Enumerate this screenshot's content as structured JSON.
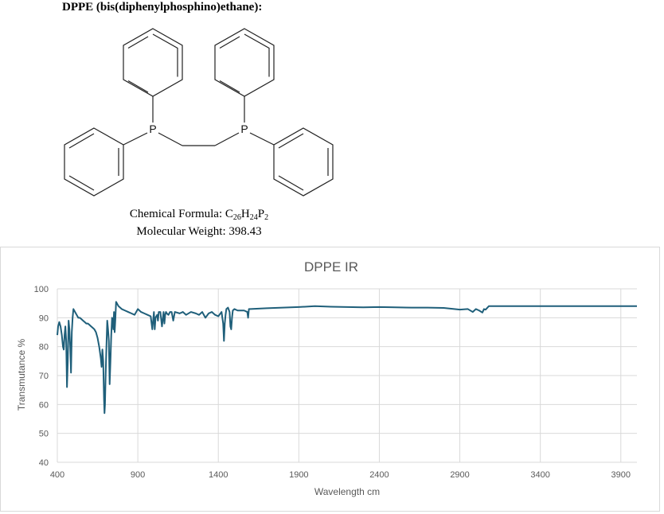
{
  "header": {
    "title": "DPPE (bis(diphenylphosphino)ethane):"
  },
  "molecule": {
    "atom_labels": [
      "P",
      "P"
    ],
    "formula_prefix": "Chemical Formula: ",
    "formula_parts": [
      {
        "text": "C",
        "sub": "26"
      },
      {
        "text": "H",
        "sub": "24"
      },
      {
        "text": "P",
        "sub": "2"
      }
    ],
    "mw_label": "Molecular Weight: ",
    "mw_value": "398.43"
  },
  "chart_data": {
    "type": "line",
    "title": "DPPE IR",
    "xlabel": "Wavelength cm",
    "ylabel": "Transmutance %",
    "xlim": [
      400,
      4000
    ],
    "ylim": [
      40,
      100
    ],
    "xticks": [
      400,
      900,
      1400,
      1900,
      2400,
      2900,
      3400,
      3900
    ],
    "yticks": [
      40,
      50,
      60,
      70,
      80,
      90,
      100
    ],
    "grid": true,
    "legend": "none",
    "line_color": "#1f5f7a",
    "series": [
      {
        "x": [
          400,
          405,
          412,
          420,
          428,
          435,
          440,
          445,
          450,
          455,
          460,
          465,
          470,
          475,
          480,
          485,
          490,
          495,
          500,
          505,
          510,
          515,
          520,
          525,
          530,
          540,
          550,
          560,
          570,
          580,
          590,
          600,
          610,
          620,
          630,
          640,
          650,
          660,
          670,
          675,
          680,
          685,
          690,
          693,
          696,
          700,
          705,
          710,
          715,
          720,
          725,
          730,
          735,
          740,
          745,
          748,
          752,
          756,
          760,
          765,
          770,
          780,
          800,
          820,
          840,
          860,
          880,
          900,
          920,
          940,
          960,
          980,
          990,
          995,
          1000,
          1005,
          1010,
          1020,
          1025,
          1030,
          1040,
          1050,
          1060,
          1065,
          1070,
          1075,
          1080,
          1090,
          1100,
          1110,
          1120,
          1130,
          1160,
          1180,
          1200,
          1230,
          1260,
          1280,
          1300,
          1320,
          1340,
          1360,
          1380,
          1400,
          1420,
          1430,
          1435,
          1440,
          1445,
          1450,
          1460,
          1470,
          1475,
          1480,
          1485,
          1490,
          1500,
          1520,
          1560,
          1580,
          1585,
          1590,
          1600,
          1700,
          1800,
          1900,
          2000,
          2100,
          2200,
          2300,
          2400,
          2500,
          2600,
          2700,
          2800,
          2900,
          2950,
          2980,
          3000,
          3020,
          3040,
          3050,
          3060,
          3080,
          3100,
          3200,
          3300,
          3400,
          3600,
          3800,
          4000
        ],
        "y": [
          84,
          87,
          88.5,
          87,
          84,
          80,
          79,
          84,
          87,
          82,
          66,
          75,
          89,
          86,
          80,
          71,
          85,
          90,
          93,
          92.5,
          92,
          91.5,
          91,
          90.5,
          90,
          90,
          89.5,
          89,
          88.5,
          88,
          88,
          87.5,
          87,
          86.5,
          86,
          85,
          83,
          80,
          76,
          73,
          79,
          75,
          62,
          57,
          60,
          70,
          80,
          89,
          86,
          82,
          67,
          75,
          84,
          90,
          89,
          86,
          92,
          85,
          89,
          95.5,
          95,
          94,
          93,
          92.5,
          92,
          91.5,
          91,
          93,
          92,
          91.5,
          91,
          90.5,
          86,
          89,
          92,
          86,
          90,
          91,
          89,
          92,
          92,
          87,
          92,
          88,
          91,
          92,
          91.5,
          91,
          92,
          92,
          89,
          92,
          91.5,
          92,
          91,
          92,
          91.5,
          91,
          92,
          90,
          91.5,
          92,
          91,
          90.5,
          92,
          88,
          82,
          88,
          91,
          93,
          93.5,
          92,
          87,
          86,
          90,
          92.5,
          93,
          92.5,
          92.5,
          92,
          90,
          93,
          93,
          93.3,
          93.5,
          93.7,
          94,
          93.8,
          93.7,
          93.6,
          93.7,
          93.6,
          93.5,
          93.5,
          93.4,
          92.8,
          93,
          92,
          93,
          92.5,
          91.8,
          93,
          92.8,
          94,
          94,
          94,
          94,
          94,
          94,
          94,
          94
        ]
      }
    ]
  }
}
